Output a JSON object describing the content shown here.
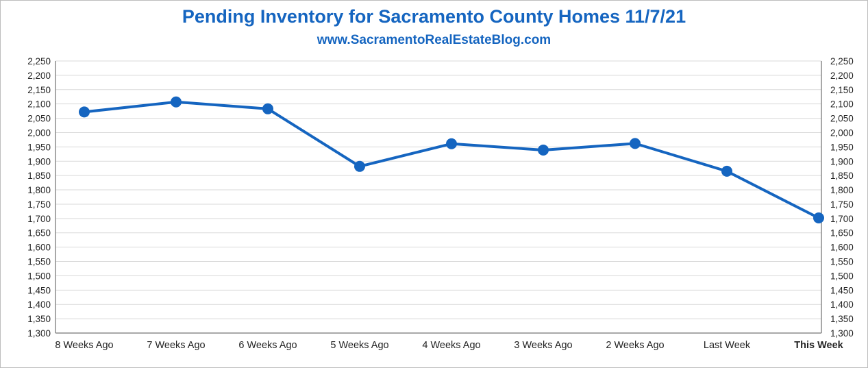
{
  "chart_data": {
    "type": "line",
    "title": "Pending Inventory for Sacramento County Homes 11/7/21",
    "subtitle": "www.SacramentoRealEstateBlog.com",
    "categories": [
      "8 Weeks Ago",
      "7 Weeks Ago",
      "6 Weeks Ago",
      "5 Weeks Ago",
      "4 Weeks Ago",
      "3 Weeks Ago",
      "2 Weeks Ago",
      "Last Week",
      "This Week"
    ],
    "highlight_category": "This Week",
    "series": [
      {
        "name": "Pending Inventory",
        "values": [
          2072,
          2107,
          2083,
          1882,
          1961,
          1939,
          1962,
          1865,
          1702
        ]
      }
    ],
    "ylim": [
      1300,
      2250
    ],
    "y_ticks": [
      "1,300",
      "1,350",
      "1,400",
      "1,450",
      "1,500",
      "1,550",
      "1,600",
      "1,650",
      "1,700",
      "1,750",
      "1,800",
      "1,850",
      "1,900",
      "1,950",
      "2,000",
      "2,050",
      "2,100",
      "2,150",
      "2,200",
      "2,250"
    ],
    "y_tick_values": [
      1300,
      1350,
      1400,
      1450,
      1500,
      1550,
      1600,
      1650,
      1700,
      1750,
      1800,
      1850,
      1900,
      1950,
      2000,
      2050,
      2100,
      2150,
      2200,
      2250
    ],
    "xlabel": "",
    "ylabel": "",
    "grid": true,
    "colors": {
      "line": "#1565c0",
      "highlight_label": "#1565c0",
      "grid": "#d9d9d9",
      "axis": "#8c8c8c"
    }
  }
}
